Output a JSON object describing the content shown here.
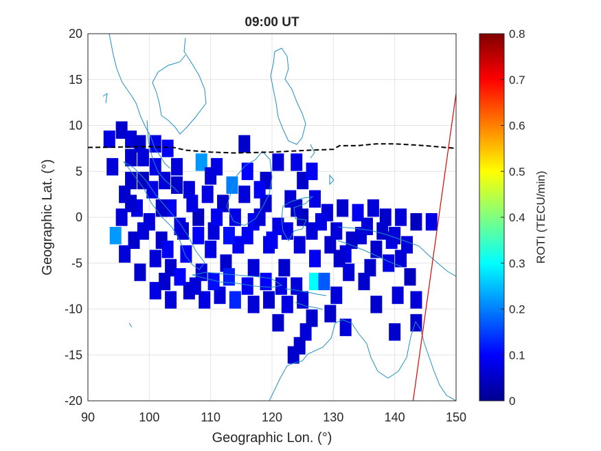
{
  "chart_data": {
    "type": "heatmap",
    "title": "09:00 UT",
    "xlabel": "Geographic Lon. (°)",
    "ylabel": "Geographic Lat. (°)",
    "xlim": [
      90,
      150
    ],
    "ylim": [
      -20,
      20
    ],
    "xticks": [
      "90",
      "100",
      "110",
      "120",
      "130",
      "140",
      "150"
    ],
    "yticks": [
      "20",
      "15",
      "10",
      "5",
      "0",
      "-5",
      "-10",
      "-15",
      "-20"
    ],
    "grid": true,
    "colorbar": {
      "label": "ROTI (TECU/min)",
      "colormap": "jet",
      "range": [
        0,
        0.8
      ],
      "ticks": [
        "0",
        "0.1",
        "0.2",
        "0.3",
        "0.4",
        "0.5",
        "0.6",
        "0.7",
        "0.8"
      ]
    },
    "magnetic_equator": [
      [
        90,
        7.6
      ],
      [
        100,
        7.7
      ],
      [
        104,
        7.6
      ],
      [
        106,
        7.3
      ],
      [
        110,
        7.1
      ],
      [
        114,
        7.0
      ],
      [
        120,
        7.1
      ],
      [
        126,
        7.3
      ],
      [
        130,
        7.4
      ],
      [
        131,
        7.8
      ],
      [
        134,
        7.8
      ],
      [
        137,
        8.0
      ],
      [
        140,
        8.0
      ],
      [
        145,
        7.8
      ],
      [
        150,
        7.5
      ]
    ],
    "red_line": [
      [
        143,
        -20
      ],
      [
        150,
        13.5
      ]
    ],
    "roti_cells": [
      [
        93.5,
        8.5,
        0.08
      ],
      [
        95.5,
        9.5,
        0.06
      ],
      [
        97,
        8.5,
        0.07
      ],
      [
        98.5,
        8,
        0.06
      ],
      [
        101,
        8,
        0.08
      ],
      [
        103,
        7.5,
        0.09
      ],
      [
        104.5,
        5.5,
        0.07
      ],
      [
        108.5,
        6,
        0.22
      ],
      [
        111,
        5.5,
        0.08
      ],
      [
        115.5,
        8,
        0.06
      ],
      [
        116,
        5,
        0.1
      ],
      [
        119,
        4,
        0.06
      ],
      [
        121,
        6,
        0.07
      ],
      [
        124,
        6,
        0.08
      ],
      [
        125,
        4,
        0.06
      ],
      [
        126.5,
        5,
        0.09
      ],
      [
        94,
        5.5,
        0.07
      ],
      [
        96,
        2.5,
        0.06
      ],
      [
        98,
        1,
        0.08
      ],
      [
        99,
        4,
        0.05
      ],
      [
        100,
        -0.5,
        0.07
      ],
      [
        102,
        -2.5,
        0.06
      ],
      [
        103.5,
        1,
        0.09
      ],
      [
        105,
        -1,
        0.08
      ],
      [
        106.5,
        3,
        0.07
      ],
      [
        108,
        0,
        0.05
      ],
      [
        109.5,
        2.5,
        0.08
      ],
      [
        110.5,
        -1.5,
        0.07
      ],
      [
        112,
        1.5,
        0.06
      ],
      [
        114,
        0,
        0.08
      ],
      [
        115.5,
        2.5,
        0.07
      ],
      [
        117,
        -0.5,
        0.09
      ],
      [
        119,
        1.5,
        0.06
      ],
      [
        121,
        -1,
        0.08
      ],
      [
        123,
        2,
        0.07
      ],
      [
        125,
        0,
        0.05
      ],
      [
        127,
        2,
        0.08
      ],
      [
        129,
        0.5,
        0.07
      ],
      [
        131.5,
        1,
        0.06
      ],
      [
        134,
        0.5,
        0.09
      ],
      [
        136.5,
        1,
        0.07
      ],
      [
        138.5,
        0,
        0.06
      ],
      [
        141,
        0,
        0.07
      ],
      [
        143.5,
        -0.5,
        0.05
      ],
      [
        146,
        -0.5,
        0.08
      ],
      [
        94.5,
        -2,
        0.22
      ],
      [
        97.5,
        -2.5,
        0.06
      ],
      [
        101,
        -4.5,
        0.07
      ],
      [
        103.5,
        -5.5,
        0.06
      ],
      [
        106,
        -4,
        0.09
      ],
      [
        108.5,
        -6,
        0.07
      ],
      [
        110,
        -3.5,
        0.08
      ],
      [
        112.5,
        -5,
        0.06
      ],
      [
        114.5,
        -3,
        0.09
      ],
      [
        117,
        -5.5,
        0.07
      ],
      [
        119.5,
        -3,
        0.08
      ],
      [
        122,
        -5.5,
        0.06
      ],
      [
        124.5,
        -3,
        0.07
      ],
      [
        127,
        -4.5,
        0.09
      ],
      [
        129.5,
        -3,
        0.06
      ],
      [
        132,
        -4,
        0.08
      ],
      [
        134.5,
        -2,
        0.07
      ],
      [
        137,
        -3.5,
        0.06
      ],
      [
        139.5,
        -2.5,
        0.08
      ],
      [
        142,
        -3,
        0.07
      ],
      [
        96,
        -4,
        0.07
      ],
      [
        98.5,
        -6,
        0.06
      ],
      [
        101,
        -8,
        0.08
      ],
      [
        103.5,
        -9,
        0.07
      ],
      [
        106.5,
        -8,
        0.06
      ],
      [
        109,
        -9,
        0.08
      ],
      [
        111.5,
        -8.5,
        0.07
      ],
      [
        114,
        -9,
        0.13
      ],
      [
        117,
        -9.5,
        0.07
      ],
      [
        119.5,
        -9,
        0.06
      ],
      [
        122.5,
        -9.5,
        0.08
      ],
      [
        125,
        -9,
        0.07
      ],
      [
        127,
        -7,
        0.3
      ],
      [
        128.5,
        -7,
        0.17
      ],
      [
        131,
        -4.5,
        0.06
      ],
      [
        132.5,
        -6,
        0.07
      ],
      [
        136,
        -5.5,
        0.06
      ],
      [
        139,
        -5,
        0.08
      ],
      [
        141,
        -4.5,
        0.07
      ],
      [
        142.5,
        -6.5,
        0.05
      ],
      [
        135,
        -7,
        0.06
      ],
      [
        130.5,
        -8.5,
        0.07
      ],
      [
        129.5,
        -10.5,
        0.06
      ],
      [
        137,
        -9.5,
        0.06
      ],
      [
        140.5,
        -8.5,
        0.07
      ],
      [
        143.5,
        -9,
        0.07
      ],
      [
        121,
        -11.5,
        0.06
      ],
      [
        125.5,
        -12.5,
        0.07
      ],
      [
        124.5,
        -14,
        0.06
      ],
      [
        123.5,
        -15,
        0.06
      ],
      [
        126.5,
        -11,
        0.06
      ],
      [
        132,
        -12,
        0.07
      ],
      [
        140,
        -12.5,
        0.06
      ],
      [
        143.5,
        -11.5,
        0.06
      ],
      [
        113.5,
        3.5,
        0.2
      ],
      [
        118,
        3,
        0.09
      ],
      [
        110,
        4.5,
        0.07
      ],
      [
        107,
        1.5,
        0.08
      ],
      [
        104.5,
        3.5,
        0.06
      ],
      [
        102,
        1,
        0.06
      ],
      [
        100.5,
        3,
        0.08
      ],
      [
        97,
        4,
        0.06
      ],
      [
        113,
        -6.5,
        0.12
      ],
      [
        110.5,
        -7,
        0.11
      ],
      [
        116,
        -7.5,
        0.09
      ],
      [
        119,
        -7,
        0.1
      ],
      [
        121.5,
        -7.5,
        0.08
      ],
      [
        124,
        -7.5,
        0.07
      ],
      [
        105,
        -6.5,
        0.1
      ],
      [
        107.5,
        -7.5,
        0.07
      ],
      [
        102.5,
        -7,
        0.06
      ],
      [
        108,
        -2,
        0.1
      ],
      [
        111,
        0,
        0.09
      ],
      [
        113,
        -2,
        0.11
      ],
      [
        116,
        -2,
        0.09
      ],
      [
        118,
        0,
        0.07
      ],
      [
        120,
        -2.5,
        0.09
      ],
      [
        122.5,
        -1.5,
        0.08
      ],
      [
        124,
        1,
        0.06
      ],
      [
        126.5,
        -1.5,
        0.07
      ],
      [
        128,
        -0.5,
        0.08
      ],
      [
        130.5,
        -1.5,
        0.07
      ],
      [
        133,
        -2.5,
        0.06
      ],
      [
        135.5,
        -1,
        0.07
      ],
      [
        138,
        -1.5,
        0.06
      ],
      [
        140,
        -2,
        0.07
      ],
      [
        103,
        -3.5,
        0.09
      ],
      [
        105.5,
        -1.5,
        0.07
      ],
      [
        99,
        -1.5,
        0.07
      ],
      [
        97,
        1.5,
        0.06
      ],
      [
        95.5,
        0,
        0.07
      ],
      [
        99,
        6.5,
        0.07
      ],
      [
        101,
        5.5,
        0.08
      ],
      [
        97,
        6.5,
        0.06
      ],
      [
        102.5,
        4,
        0.07
      ]
    ]
  }
}
